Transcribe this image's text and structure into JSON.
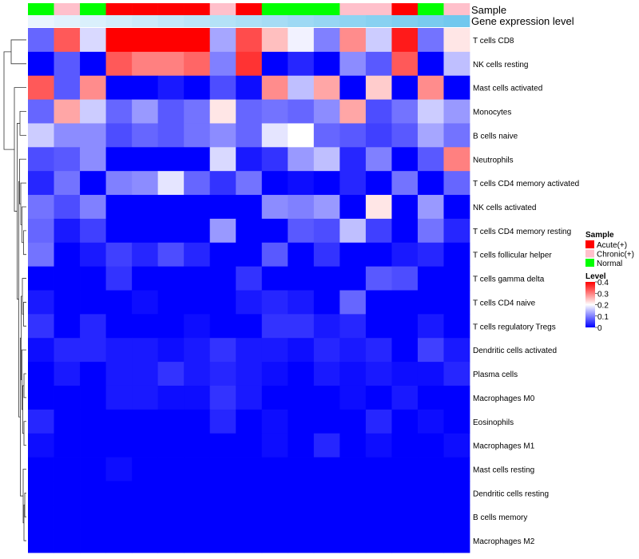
{
  "chart_data": {
    "type": "heatmap",
    "title": "",
    "annotation_labels": {
      "sample": "Sample",
      "expression": "Gene expression level"
    },
    "samples": [
      "Normal",
      "Chronic(+)",
      "Normal",
      "Acute(+)",
      "Acute(+)",
      "Acute(+)",
      "Acute(+)",
      "Chronic(+)",
      "Acute(+)",
      "Normal",
      "Normal",
      "Normal",
      "Chronic(+)",
      "Chronic(+)",
      "Acute(+)",
      "Normal",
      "Chronic(+)"
    ],
    "expression_annotation": [
      0.05,
      0.1,
      0.15,
      0.2,
      0.25,
      0.3,
      0.35,
      0.4,
      0.45,
      0.5,
      0.55,
      0.6,
      0.65,
      0.7,
      0.75,
      0.8,
      0.85
    ],
    "rows": [
      "T cells CD8",
      "NK cells resting",
      "Mast cells activated",
      "Monocytes",
      "B cells naive",
      "Neutrophils",
      "T cells CD4 memory activated",
      "NK cells activated",
      "T cells CD4 memory resting",
      "T cells follicular helper",
      "T cells gamma delta",
      "T cells CD4 naive",
      "T cells regulatory  Tregs",
      "Dendritic cells activated",
      "Plasma cells",
      "Macrophages M0",
      "Eosinophils",
      "Macrophages M1",
      "Mast cells resting",
      "Dendritic cells resting",
      "B cells memory",
      "Macrophages M2"
    ],
    "values": [
      [
        0.08,
        0.33,
        0.17,
        0.4,
        0.4,
        0.4,
        0.4,
        0.13,
        0.34,
        0.25,
        0.19,
        0.1,
        0.29,
        0.16,
        0.38,
        0.09,
        0.22
      ],
      [
        0.0,
        0.07,
        0.0,
        0.33,
        0.3,
        0.3,
        0.32,
        0.1,
        0.36,
        0.0,
        0.03,
        0.0,
        0.11,
        0.07,
        0.33,
        0.0,
        0.15
      ],
      [
        0.33,
        0.07,
        0.29,
        0.0,
        0.0,
        0.02,
        0.0,
        0.06,
        0.01,
        0.29,
        0.15,
        0.27,
        0.0,
        0.24,
        0.0,
        0.29,
        0.0
      ],
      [
        0.08,
        0.27,
        0.16,
        0.08,
        0.12,
        0.07,
        0.09,
        0.22,
        0.08,
        0.09,
        0.08,
        0.11,
        0.27,
        0.06,
        0.09,
        0.16,
        0.12
      ],
      [
        0.16,
        0.11,
        0.11,
        0.06,
        0.08,
        0.07,
        0.09,
        0.11,
        0.08,
        0.18,
        0.2,
        0.08,
        0.07,
        0.05,
        0.07,
        0.13,
        0.09
      ],
      [
        0.06,
        0.07,
        0.11,
        0.0,
        0.0,
        0.0,
        0.0,
        0.17,
        0.02,
        0.04,
        0.12,
        0.15,
        0.03,
        0.1,
        0.0,
        0.07,
        0.3
      ],
      [
        0.03,
        0.09,
        0.0,
        0.1,
        0.11,
        0.18,
        0.08,
        0.04,
        0.09,
        0.0,
        0.01,
        0.0,
        0.03,
        0.0,
        0.09,
        0.0,
        0.08
      ],
      [
        0.09,
        0.06,
        0.1,
        0.0,
        0.0,
        0.0,
        0.0,
        0.0,
        0.0,
        0.11,
        0.1,
        0.12,
        0.0,
        0.22,
        0.0,
        0.12,
        0.0
      ],
      [
        0.08,
        0.02,
        0.05,
        0.0,
        0.0,
        0.0,
        0.0,
        0.12,
        0.0,
        0.0,
        0.07,
        0.06,
        0.15,
        0.05,
        0.0,
        0.09,
        0.03
      ],
      [
        0.09,
        0.0,
        0.02,
        0.05,
        0.03,
        0.06,
        0.03,
        0.0,
        0.0,
        0.07,
        0.0,
        0.04,
        0.0,
        0.0,
        0.02,
        0.03,
        0.0
      ],
      [
        0.0,
        0.0,
        0.0,
        0.04,
        0.0,
        0.0,
        0.0,
        0.0,
        0.04,
        0.0,
        0.0,
        0.0,
        0.0,
        0.07,
        0.06,
        0.0,
        0.0
      ],
      [
        0.02,
        0.0,
        0.0,
        0.0,
        0.01,
        0.0,
        0.0,
        0.0,
        0.02,
        0.03,
        0.02,
        0.0,
        0.08,
        0.0,
        0.0,
        0.0,
        0.0
      ],
      [
        0.04,
        0.0,
        0.03,
        0.0,
        0.0,
        0.0,
        0.01,
        0.0,
        0.0,
        0.04,
        0.04,
        0.02,
        0.03,
        0.0,
        0.0,
        0.02,
        0.0
      ],
      [
        0.01,
        0.03,
        0.03,
        0.02,
        0.02,
        0.01,
        0.02,
        0.04,
        0.02,
        0.02,
        0.01,
        0.03,
        0.02,
        0.03,
        0.0,
        0.05,
        0.02
      ],
      [
        0.0,
        0.02,
        0.0,
        0.02,
        0.02,
        0.04,
        0.02,
        0.03,
        0.02,
        0.01,
        0.0,
        0.02,
        0.01,
        0.02,
        0.01,
        0.01,
        0.03
      ],
      [
        0.0,
        0.0,
        0.0,
        0.02,
        0.02,
        0.01,
        0.01,
        0.04,
        0.02,
        0.0,
        0.0,
        0.0,
        0.01,
        0.0,
        0.02,
        0.0,
        0.0
      ],
      [
        0.03,
        0.0,
        0.0,
        0.0,
        0.0,
        0.0,
        0.0,
        0.03,
        0.0,
        0.01,
        0.0,
        0.0,
        0.0,
        0.03,
        0.0,
        0.01,
        0.0
      ],
      [
        0.01,
        0.0,
        0.0,
        0.0,
        0.0,
        0.0,
        0.0,
        0.0,
        0.0,
        0.01,
        0.0,
        0.03,
        0.0,
        0.01,
        0.0,
        0.0,
        0.01
      ],
      [
        0.0,
        0.0,
        0.0,
        0.01,
        0.0,
        0.0,
        0.0,
        0.0,
        0.0,
        0.0,
        0.0,
        0.0,
        0.0,
        0.0,
        0.0,
        0.0,
        0.0
      ],
      [
        0.0,
        0.0,
        0.0,
        0.0,
        0.0,
        0.0,
        0.0,
        0.0,
        0.0,
        0.0,
        0.0,
        0.0,
        0.0,
        0.0,
        0.0,
        0.0,
        0.0
      ],
      [
        0.0,
        0.0,
        0.0,
        0.0,
        0.0,
        0.0,
        0.0,
        0.0,
        0.0,
        0.0,
        0.0,
        0.0,
        0.0,
        0.0,
        0.0,
        0.0,
        0.0
      ],
      [
        0.0,
        0.0,
        0.0,
        0.0,
        0.0,
        0.0,
        0.0,
        0.0,
        0.0,
        0.0,
        0.0,
        0.0,
        0.0,
        0.0,
        0.0,
        0.0,
        0.0
      ]
    ],
    "color_scale": {
      "low": "#0000ff",
      "mid": "#ffffff",
      "high": "#ff0000",
      "min": 0,
      "mid_value": 0.2,
      "max": 0.4
    },
    "sample_colors": {
      "Acute(+)": "#ff0000",
      "Chronic(+)": "#ffc0cb",
      "Normal": "#00ff00"
    },
    "expression_colors": {
      "low": "#f0f8ff",
      "high": "#5bc0eb"
    },
    "legend_sample": {
      "title": "Sample",
      "entries": [
        "Acute(+)",
        "Chronic(+)",
        "Normal"
      ]
    },
    "legend_level": {
      "title": "Level",
      "ticks": [
        "0",
        "0.1",
        "0.2",
        "0.3",
        "0.4"
      ]
    }
  }
}
